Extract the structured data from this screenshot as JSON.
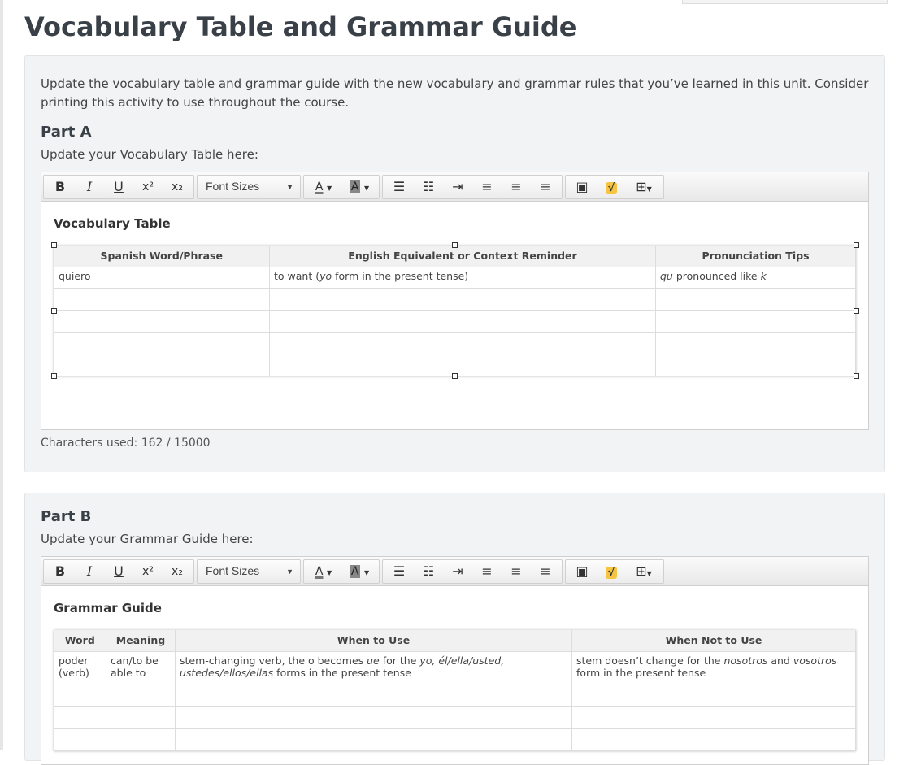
{
  "page": {
    "title": "Vocabulary Table and Grammar Guide"
  },
  "intro": "Update the vocabulary table and grammar guide with the new vocabulary and grammar rules that you’ve learned in this unit. Consider printing this activity to use throughout the course.",
  "toolbar": {
    "bold": "B",
    "italic": "I",
    "underline": "U",
    "superscript": "x²",
    "subscript": "x₂",
    "font_sizes": "Font Sizes",
    "text_color": "A",
    "bg_color": "A",
    "icons": [
      "bold-icon",
      "italic-icon",
      "underline-icon",
      "superscript-icon",
      "subscript-icon",
      "bullet-list-icon",
      "numbered-list-icon",
      "indent-icon",
      "align-left-icon",
      "align-center-icon",
      "align-right-icon",
      "image-icon",
      "math-icon",
      "table-icon"
    ]
  },
  "partA": {
    "heading": "Part A",
    "prompt": "Update your Vocabulary Table here:",
    "table_title": "Vocabulary Table",
    "columns": [
      "Spanish Word/Phrase",
      "English Equivalent or Context Reminder",
      "Pronunciation Tips"
    ],
    "rows": [
      [
        [
          {
            "t": "quiero"
          }
        ],
        [
          {
            "t": "to want ("
          },
          {
            "t": "yo",
            "i": true
          },
          {
            "t": " form in the present tense)"
          }
        ],
        [
          {
            "t": "qu",
            "i": true
          },
          {
            "t": " pronounced like "
          },
          {
            "t": "k",
            "i": true
          }
        ]
      ],
      [],
      [],
      [],
      []
    ],
    "chars_used": "Characters used: 162 / 15000"
  },
  "partB": {
    "heading": "Part B",
    "prompt": "Update your Grammar Guide here:",
    "table_title": "Grammar Guide",
    "columns": [
      "Word",
      "Meaning",
      "When to Use",
      "When Not to Use"
    ],
    "rows": [
      [
        [
          {
            "t": "poder (verb)"
          }
        ],
        [
          {
            "t": "can/to be able to"
          }
        ],
        [
          {
            "t": "stem-changing verb, the o becomes "
          },
          {
            "t": "ue",
            "i": true
          },
          {
            "t": " for the "
          },
          {
            "t": "yo, él/ella/usted, ustedes/ellos/ellas",
            "i": true
          },
          {
            "t": " forms in the present tense"
          }
        ],
        [
          {
            "t": "stem doesn’t change for the "
          },
          {
            "t": "nosotros",
            "i": true
          },
          {
            "t": " and "
          },
          {
            "t": "vosotros",
            "i": true
          },
          {
            "t": " form in the present tense"
          }
        ]
      ],
      [],
      [],
      []
    ]
  },
  "colors": {
    "panel": "#f2f3f4",
    "math_button": "#f5c542"
  }
}
